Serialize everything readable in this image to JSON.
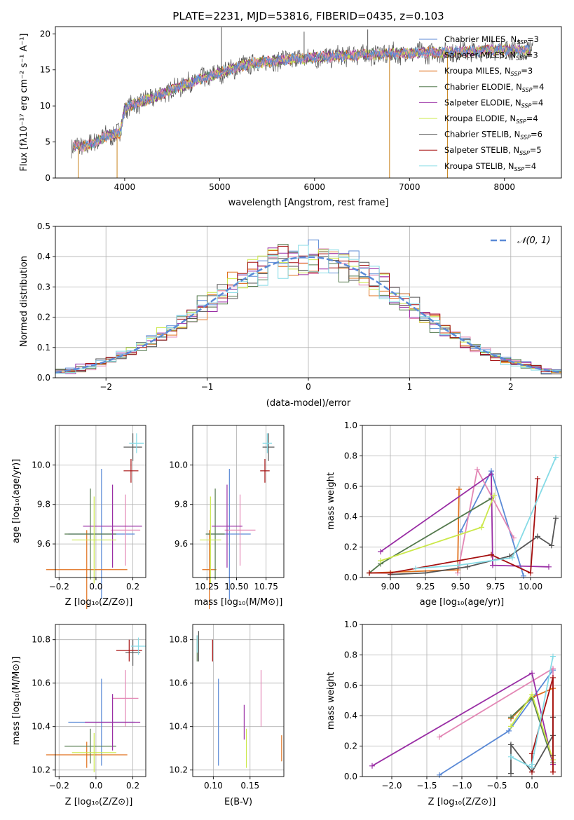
{
  "title": "PLATE=2231, MJD=53816, FIBERID=0435, z=0.103",
  "colors": {
    "cm": "#5b8ad6",
    "sm": "#e387b5",
    "km": "#e0711d",
    "ce": "#557a4e",
    "se": "#9a2fa5",
    "ke": "#cbe84a",
    "cs": "#555555",
    "ss": "#a50f0f",
    "ks": "#86dbe6"
  },
  "legend": [
    {
      "key": "cm",
      "label": "Chabrier MILES, N",
      "sub": "SSP",
      "tail": "=3"
    },
    {
      "key": "sm",
      "label": "Salpeter MILES, N",
      "sub": "SSP",
      "tail": "=3"
    },
    {
      "key": "km",
      "label": "Kroupa MILES, N",
      "sub": "SSP",
      "tail": "=3"
    },
    {
      "key": "ce",
      "label": "Chabrier ELODIE, N",
      "sub": "SSP",
      "tail": "=4"
    },
    {
      "key": "se",
      "label": "Salpeter ELODIE, N",
      "sub": "SSP",
      "tail": "=4"
    },
    {
      "key": "ke",
      "label": "Kroupa ELODIE, N",
      "sub": "SSP",
      "tail": "=4"
    },
    {
      "key": "cs",
      "label": "Chabrier STELIB, N",
      "sub": "SSP",
      "tail": "=6"
    },
    {
      "key": "ss",
      "label": "Salpeter STELIB, N",
      "sub": "SSP",
      "tail": "=5"
    },
    {
      "key": "ks",
      "label": "Kroupa STELIB, N",
      "sub": "SSP",
      "tail": "=4"
    }
  ],
  "chart_data": [
    {
      "id": "spectrum",
      "type": "line",
      "xlabel": "wavelength [Angstrom, rest frame]",
      "ylabel": "Flux [fλ10⁻¹⁷ erg cm⁻² s⁻¹ A⁻¹]",
      "xlim": [
        3270,
        8600
      ],
      "ylim": [
        0,
        21
      ],
      "xticks": [
        4000,
        5000,
        6000,
        7000,
        8000
      ],
      "yticks": [
        0,
        5,
        10,
        15,
        20
      ],
      "continuum": {
        "x": [
          3450,
          3600,
          3800,
          3950,
          4000,
          4100,
          4300,
          4600,
          5000,
          5300,
          5600,
          6000,
          6500,
          7000,
          7500,
          8000,
          8300
        ],
        "y": [
          4.4,
          4.4,
          5.8,
          6.2,
          9.6,
          10.2,
          11.2,
          12.8,
          14.6,
          15.8,
          16.3,
          16.7,
          17.1,
          17.3,
          17.5,
          17.8,
          17.7
        ]
      },
      "features": [
        {
          "x": 5020,
          "y": 20.9
        },
        {
          "x": 5890,
          "y": 20.3
        },
        {
          "x": 6560,
          "y": 20.6
        },
        {
          "x": 6790,
          "y": 0
        },
        {
          "x": 7400,
          "y": 0
        },
        {
          "x": 3920,
          "y": 0
        },
        {
          "x": 3510,
          "y": 0
        }
      ]
    },
    {
      "id": "residuals",
      "type": "step",
      "xlabel": "(data-model)/error",
      "ylabel": "Normed distribution",
      "xlim": [
        -2.5,
        2.5
      ],
      "ylim": [
        0,
        0.5
      ],
      "xticks": [
        -2,
        -1,
        0,
        1,
        2
      ],
      "yticks": [
        0.0,
        0.1,
        0.2,
        0.3,
        0.4,
        0.5
      ],
      "bin_width": 0.1,
      "reference": {
        "name": "𝒩(0, 1)",
        "mu": 0,
        "sigma": 1
      }
    },
    {
      "id": "Z_age",
      "type": "errorbar",
      "xlabel": "Z [log₁₀(Z/Z⊙)]",
      "ylabel": "age  [log₁₀(age/yr)]",
      "xlim": [
        -0.22,
        0.27
      ],
      "ylim": [
        9.43,
        10.2
      ],
      "xticks": [
        -0.2,
        0.0,
        0.2
      ],
      "yticks": [
        9.6,
        9.8,
        10.0
      ],
      "points": [
        {
          "key": "cm",
          "x": 0.03,
          "y": 9.65,
          "xerr": 0.18,
          "yerr": 0.33
        },
        {
          "key": "sm",
          "x": 0.16,
          "y": 9.67,
          "xerr": 0.08,
          "yerr": 0.18
        },
        {
          "key": "km",
          "x": -0.05,
          "y": 9.47,
          "xerr": 0.22,
          "yerr": 0.2
        },
        {
          "key": "ce",
          "x": -0.03,
          "y": 9.65,
          "xerr": 0.14,
          "yerr": 0.23
        },
        {
          "key": "se",
          "x": 0.09,
          "y": 9.69,
          "xerr": 0.16,
          "yerr": 0.21
        },
        {
          "key": "ke",
          "x": -0.01,
          "y": 9.62,
          "xerr": 0.12,
          "yerr": 0.22
        },
        {
          "key": "cs",
          "x": 0.2,
          "y": 10.09,
          "xerr": 0.05,
          "yerr": 0.07
        },
        {
          "key": "ss",
          "x": 0.19,
          "y": 9.97,
          "xerr": 0.04,
          "yerr": 0.06
        },
        {
          "key": "ks",
          "x": 0.22,
          "y": 10.11,
          "xerr": 0.04,
          "yerr": 0.05
        }
      ]
    },
    {
      "id": "mass_age",
      "type": "errorbar",
      "xlabel": "mass [log₁₀(M/M⊙)]",
      "ylabel": "",
      "xlim": [
        10.13,
        10.9
      ],
      "ylim": [
        9.43,
        10.2
      ],
      "xticks": [
        10.25,
        10.5,
        10.75
      ],
      "yticks": [
        9.6,
        9.8,
        10.0
      ],
      "points": [
        {
          "key": "cm",
          "x": 10.44,
          "y": 9.65,
          "xerr": 0.18,
          "yerr": 0.33
        },
        {
          "key": "sm",
          "x": 10.53,
          "y": 9.67,
          "xerr": 0.13,
          "yerr": 0.18
        },
        {
          "key": "km",
          "x": 10.27,
          "y": 9.47,
          "xerr": 0.06,
          "yerr": 0.2
        },
        {
          "key": "ce",
          "x": 10.32,
          "y": 9.65,
          "xerr": 0.08,
          "yerr": 0.23
        },
        {
          "key": "se",
          "x": 10.42,
          "y": 9.69,
          "xerr": 0.13,
          "yerr": 0.21
        },
        {
          "key": "ke",
          "x": 10.28,
          "y": 9.62,
          "xerr": 0.09,
          "yerr": 0.22
        },
        {
          "key": "cs",
          "x": 10.77,
          "y": 10.09,
          "xerr": 0.05,
          "yerr": 0.07
        },
        {
          "key": "ss",
          "x": 10.74,
          "y": 9.97,
          "xerr": 0.04,
          "yerr": 0.06
        },
        {
          "key": "ks",
          "x": 10.76,
          "y": 10.11,
          "xerr": 0.04,
          "yerr": 0.05
        }
      ]
    },
    {
      "id": "age_weight",
      "type": "line",
      "xlabel": "age  [log₁₀(age/yr)]",
      "ylabel": "mass weight",
      "xlim": [
        8.8,
        10.22
      ],
      "ylim": [
        0,
        1
      ],
      "xticks": [
        9.0,
        9.25,
        9.5,
        9.75,
        10.0
      ],
      "yticks": [
        0.0,
        0.2,
        0.4,
        0.6,
        0.8,
        1.0
      ],
      "series": [
        {
          "key": "cm",
          "x": [
            9.5,
            9.72,
            9.95
          ],
          "y": [
            0.3,
            0.7,
            0.01
          ]
        },
        {
          "key": "sm",
          "x": [
            9.48,
            9.62,
            9.88
          ],
          "y": [
            0.03,
            0.71,
            0.26
          ]
        },
        {
          "key": "km",
          "x": [
            8.85,
            9.48,
            9.49
          ],
          "y": [
            0.03,
            0.05,
            0.58
          ]
        },
        {
          "key": "ce",
          "x": [
            8.85,
            8.93,
            9.72
          ],
          "y": [
            0.03,
            0.09,
            0.52
          ]
        },
        {
          "key": "se",
          "x": [
            8.93,
            9.72,
            9.73,
            10.13
          ],
          "y": [
            0.17,
            0.68,
            0.08,
            0.07
          ]
        },
        {
          "key": "ke",
          "x": [
            8.93,
            9.65,
            9.74
          ],
          "y": [
            0.11,
            0.33,
            0.54
          ]
        },
        {
          "key": "cs",
          "x": [
            9.0,
            9.25,
            9.55,
            9.85,
            10.05,
            10.15,
            10.18
          ],
          "y": [
            0.02,
            0.03,
            0.07,
            0.14,
            0.27,
            0.21,
            0.39
          ]
        },
        {
          "key": "ss",
          "x": [
            8.85,
            9.0,
            9.72,
            10.0,
            10.05
          ],
          "y": [
            0.03,
            0.03,
            0.15,
            0.03,
            0.65
          ]
        },
        {
          "key": "ks",
          "x": [
            9.18,
            9.48,
            9.87,
            10.18
          ],
          "y": [
            0.06,
            0.08,
            0.13,
            0.79
          ]
        }
      ]
    },
    {
      "id": "Z_mass",
      "type": "errorbar",
      "xlabel": "Z [log₁₀(Z/Z⊙)]",
      "ylabel": "mass [log₁₀(M/M⊙)]",
      "xlim": [
        -0.22,
        0.27
      ],
      "ylim": [
        10.17,
        10.87
      ],
      "xticks": [
        -0.2,
        0.0,
        0.2
      ],
      "yticks": [
        10.2,
        10.4,
        10.6,
        10.8
      ],
      "points": [
        {
          "key": "cm",
          "x": 0.03,
          "y": 10.42,
          "xerr": 0.18,
          "yerr": 0.2
        },
        {
          "key": "sm",
          "x": 0.16,
          "y": 10.53,
          "xerr": 0.07,
          "yerr": 0.13
        },
        {
          "key": "km",
          "x": -0.05,
          "y": 10.27,
          "xerr": 0.22,
          "yerr": 0.06
        },
        {
          "key": "ce",
          "x": -0.03,
          "y": 10.31,
          "xerr": 0.14,
          "yerr": 0.08
        },
        {
          "key": "se",
          "x": 0.09,
          "y": 10.42,
          "xerr": 0.15,
          "yerr": 0.13
        },
        {
          "key": "ke",
          "x": -0.01,
          "y": 10.28,
          "xerr": 0.12,
          "yerr": 0.09
        },
        {
          "key": "cs",
          "x": 0.2,
          "y": 10.74,
          "xerr": 0.04,
          "yerr": 0.06
        },
        {
          "key": "ss",
          "x": 0.18,
          "y": 10.75,
          "xerr": 0.07,
          "yerr": 0.05
        },
        {
          "key": "ks",
          "x": 0.23,
          "y": 10.77,
          "xerr": 0.04,
          "yerr": 0.04
        }
      ]
    },
    {
      "id": "ebv_mass",
      "type": "errorbar",
      "xlabel": "E(B-V)",
      "ylabel": "",
      "xlim": [
        0.072,
        0.196
      ],
      "ylim": [
        10.17,
        10.87
      ],
      "xticks": [
        0.1,
        0.15
      ],
      "yticks": [
        10.2,
        10.4,
        10.6,
        10.8
      ],
      "points": [
        {
          "key": "cm",
          "x": 0.107,
          "y": 10.42,
          "xerr": 0,
          "yerr": 0.2
        },
        {
          "key": "sm",
          "x": 0.165,
          "y": 10.53,
          "xerr": 0,
          "yerr": 0.13
        },
        {
          "key": "km",
          "x": 0.193,
          "y": 10.3,
          "xerr": 0,
          "yerr": 0.06
        },
        {
          "key": "ce",
          "x": 0.078,
          "y": 10.76,
          "xerr": 0,
          "yerr": 0.06
        },
        {
          "key": "se",
          "x": 0.142,
          "y": 10.42,
          "xerr": 0,
          "yerr": 0.08
        },
        {
          "key": "ke",
          "x": 0.145,
          "y": 10.3,
          "xerr": 0,
          "yerr": 0.09
        },
        {
          "key": "cs",
          "x": 0.08,
          "y": 10.77,
          "xerr": 0,
          "yerr": 0.07
        },
        {
          "key": "ss",
          "x": 0.099,
          "y": 10.75,
          "xerr": 0,
          "yerr": 0.05
        },
        {
          "key": "ks",
          "x": 0.078,
          "y": 10.78,
          "xerr": 0,
          "yerr": 0.04
        }
      ]
    },
    {
      "id": "Z_weight",
      "type": "line",
      "xlabel": "Z [log₁₀(Z/Z⊙)]",
      "ylabel": "mass weight",
      "xlim": [
        -2.42,
        0.42
      ],
      "ylim": [
        0,
        1
      ],
      "xticks": [
        -2.0,
        -1.5,
        -1.0,
        -0.5,
        0.0
      ],
      "yticks": [
        0.0,
        0.2,
        0.4,
        0.6,
        0.8,
        1.0
      ],
      "series": [
        {
          "key": "cm",
          "x": [
            -1.32,
            -0.33,
            0.3
          ],
          "y": [
            0.01,
            0.3,
            0.7
          ]
        },
        {
          "key": "sm",
          "x": [
            -1.32,
            0.3,
            0.3
          ],
          "y": [
            0.26,
            0.71,
            0.03
          ]
        },
        {
          "key": "km",
          "x": [
            -0.3,
            0.0,
            0.3,
            0.3
          ],
          "y": [
            0.38,
            0.52,
            0.58,
            0.03
          ]
        },
        {
          "key": "ce",
          "x": [
            -0.3,
            0.0,
            0.3
          ],
          "y": [
            0.39,
            0.52,
            0.09
          ]
        },
        {
          "key": "se",
          "x": [
            -2.28,
            0.0,
            0.3
          ],
          "y": [
            0.07,
            0.68,
            0.08
          ]
        },
        {
          "key": "ke",
          "x": [
            -0.3,
            0.0,
            0.3
          ],
          "y": [
            0.33,
            0.54,
            0.11
          ]
        },
        {
          "key": "cs",
          "x": [
            -0.3,
            -0.3,
            0.0,
            0.3,
            0.3,
            0.3
          ],
          "y": [
            0.02,
            0.21,
            0.03,
            0.27,
            0.39,
            0.14
          ]
        },
        {
          "key": "ss",
          "x": [
            0.0,
            0.0,
            0.3,
            0.3
          ],
          "y": [
            0.03,
            0.15,
            0.65,
            0.03
          ]
        },
        {
          "key": "ks",
          "x": [
            -0.3,
            0.0,
            0.0,
            0.3
          ],
          "y": [
            0.13,
            0.06,
            0.08,
            0.79
          ]
        }
      ]
    }
  ]
}
